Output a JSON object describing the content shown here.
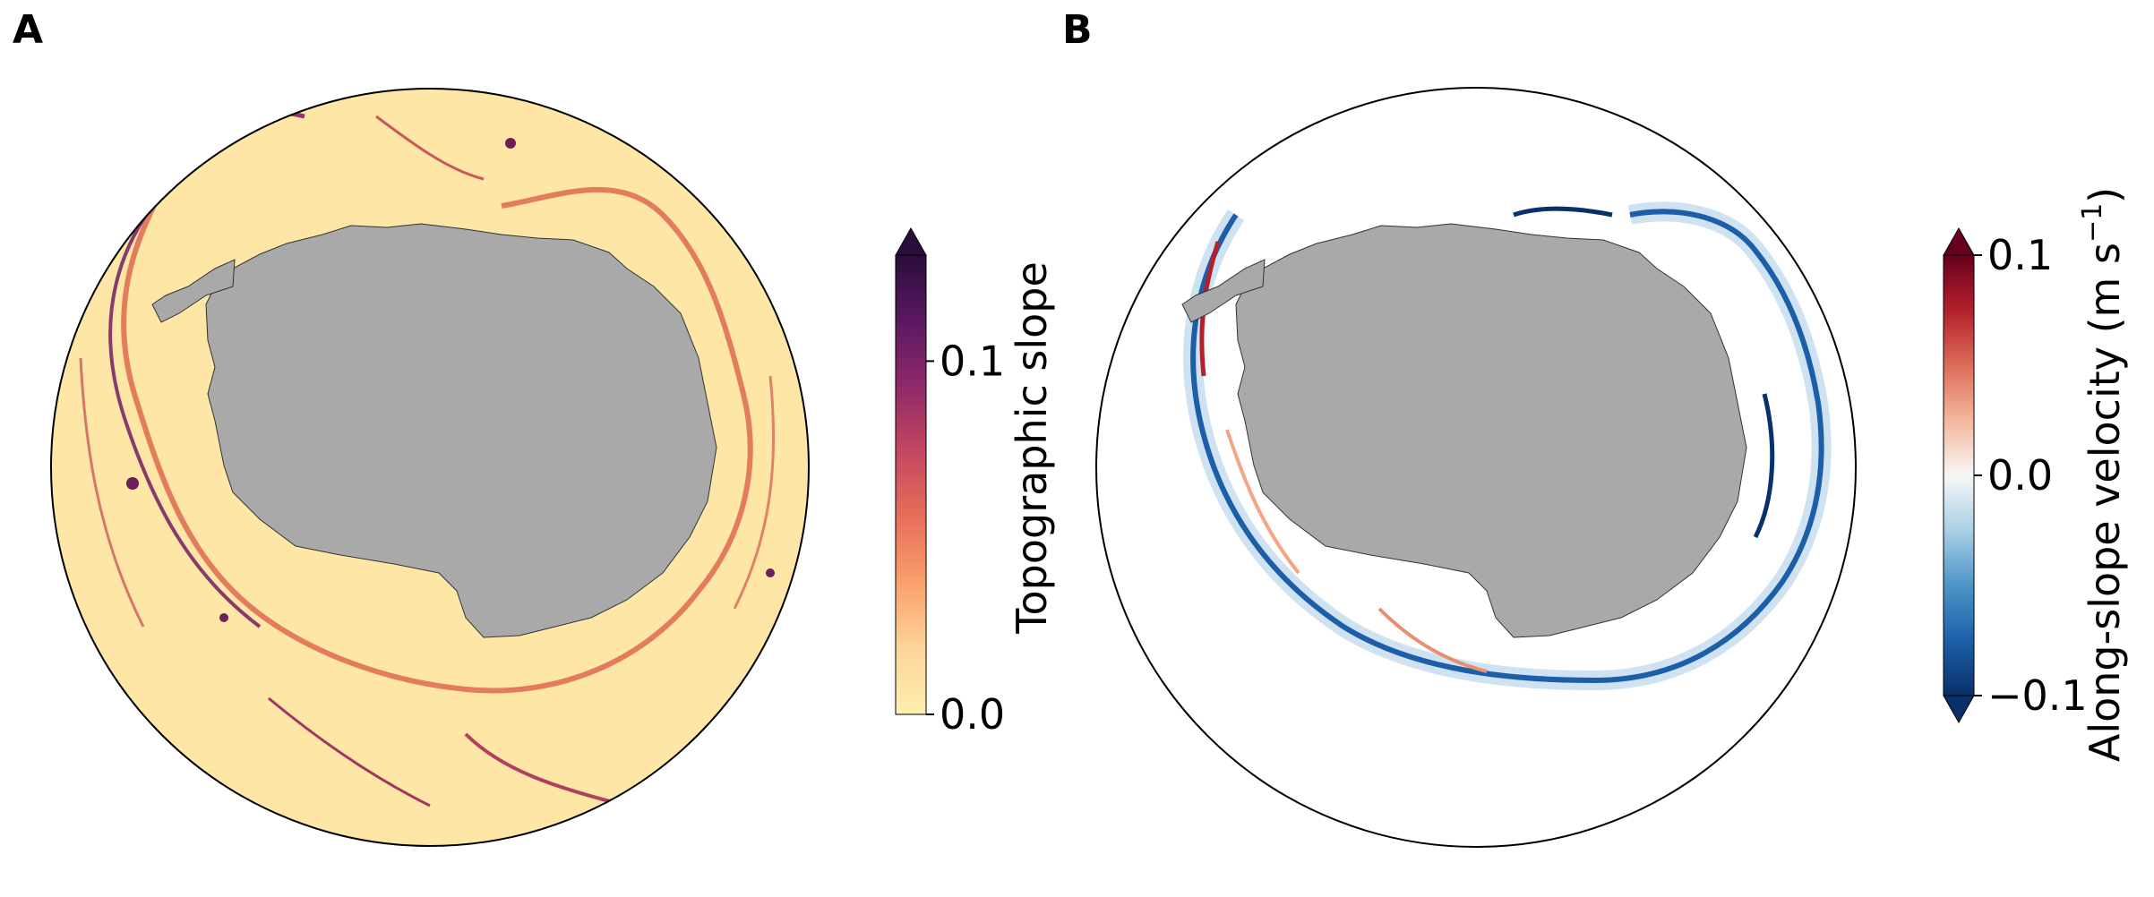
{
  "panels": [
    {
      "label": "A",
      "colorbar": {
        "label": "Topographic slope",
        "ticks": [
          "0.0",
          "0.1"
        ],
        "range": [
          0.0,
          0.13
        ],
        "extend": "max",
        "colormap": [
          "#fcf0b0",
          "#fdd49a",
          "#f9a16c",
          "#e86e5a",
          "#c44760",
          "#8f2968",
          "#5a1862",
          "#2a0d3a"
        ]
      },
      "colors": {
        "ocean": "#fde6a6",
        "land": "#a9a9a9",
        "slope_high": "#6b1f5c",
        "slope_mid": "#d5555a"
      }
    },
    {
      "label": "B",
      "colorbar": {
        "label": "Along-slope velocity (m s",
        "label_superscript": "−1",
        "label_suffix": ")",
        "ticks": [
          "−0.1",
          "0.0",
          "0.1"
        ],
        "range": [
          -0.1,
          0.1
        ],
        "extend": "both",
        "colormap": [
          "#08306b",
          "#1c5fa8",
          "#4d95c8",
          "#a9cfe5",
          "#f7f7f7",
          "#f4b79c",
          "#dc6c5a",
          "#b3202c",
          "#67001f"
        ]
      },
      "colors": {
        "ocean": "#ffffff",
        "land": "#a9a9a9",
        "current_negative": "#1c5fa8",
        "current_positive": "#d6604d"
      }
    }
  ]
}
